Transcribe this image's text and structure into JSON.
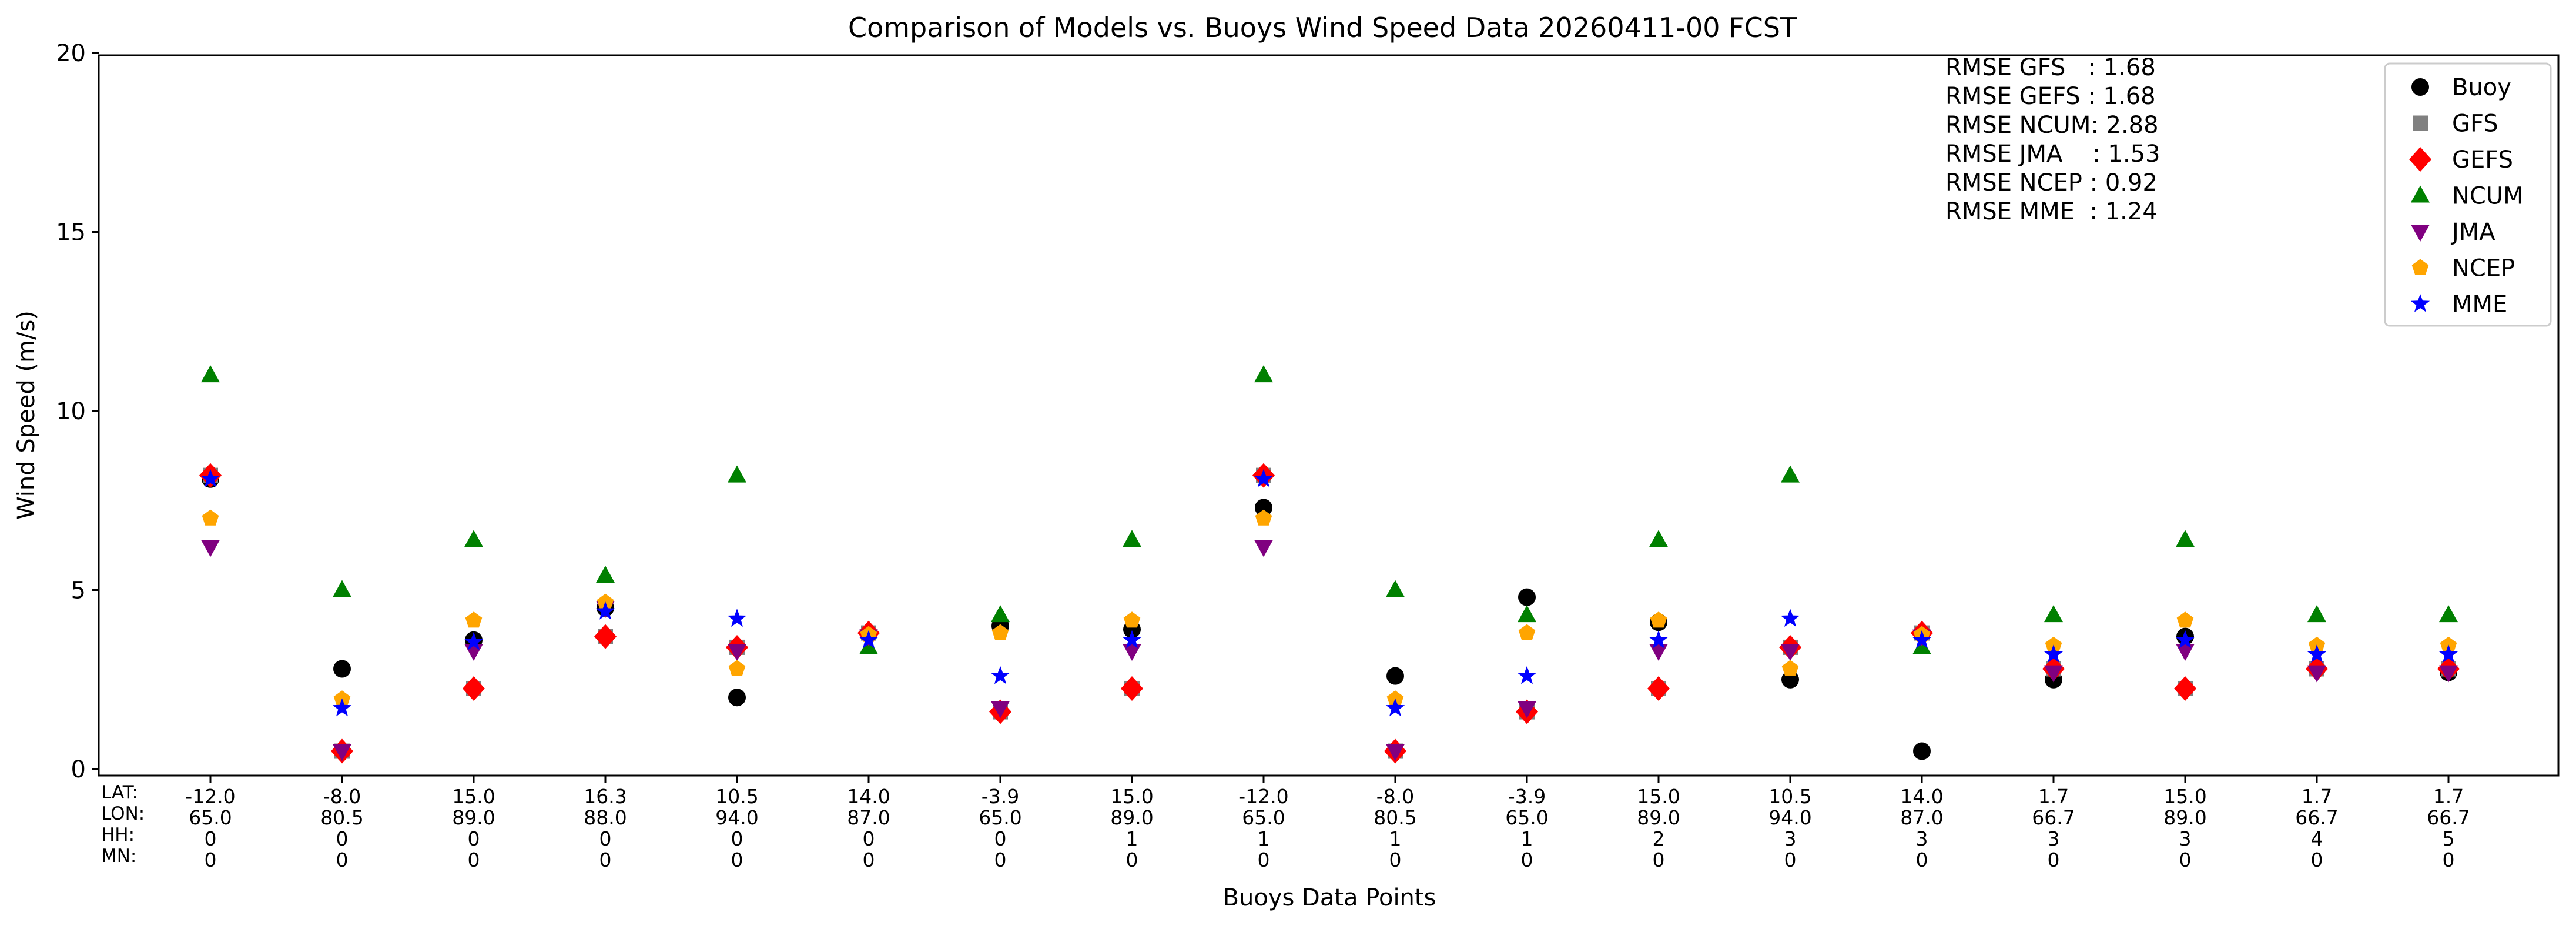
{
  "chart_data": {
    "type": "scatter",
    "title": "Comparison of Models vs. Buoys Wind Speed Data 20260411-00 FCST",
    "xlabel": "Buoys Data Points",
    "ylabel": "Wind Speed (m/s)",
    "ylim": [
      0,
      20
    ],
    "yticks": [
      0,
      5,
      10,
      15,
      20
    ],
    "grid": false,
    "legend_position": "top-right",
    "row_headers": [
      "LAT:",
      "LON:",
      "HH:",
      "MN:"
    ],
    "x_labels": [
      [
        "-12.0",
        "65.0",
        "0",
        "0"
      ],
      [
        "-8.0",
        "80.5",
        "0",
        "0"
      ],
      [
        "15.0",
        "89.0",
        "0",
        "0"
      ],
      [
        "16.3",
        "88.0",
        "0",
        "0"
      ],
      [
        "10.5",
        "94.0",
        "0",
        "0"
      ],
      [
        "14.0",
        "87.0",
        "0",
        "0"
      ],
      [
        "-3.9",
        "65.0",
        "0",
        "0"
      ],
      [
        "15.0",
        "89.0",
        "1",
        "0"
      ],
      [
        "-12.0",
        "65.0",
        "1",
        "0"
      ],
      [
        "-8.0",
        "80.5",
        "1",
        "0"
      ],
      [
        "-3.9",
        "65.0",
        "1",
        "0"
      ],
      [
        "15.0",
        "89.0",
        "2",
        "0"
      ],
      [
        "10.5",
        "94.0",
        "3",
        "0"
      ],
      [
        "14.0",
        "87.0",
        "3",
        "0"
      ],
      [
        "1.7",
        "66.7",
        "3",
        "0"
      ],
      [
        "15.0",
        "89.0",
        "3",
        "0"
      ],
      [
        "1.7",
        "66.7",
        "4",
        "0"
      ],
      [
        "1.7",
        "66.7",
        "5",
        "0"
      ]
    ],
    "rmse_lines": [
      "RMSE GFS   : 1.68",
      "RMSE GEFS : 1.68",
      "RMSE NCUM: 2.88",
      "RMSE JMA    : 1.53",
      "RMSE NCEP : 0.92",
      "RMSE MME  : 1.24"
    ],
    "series": [
      {
        "name": "Buoy",
        "marker": "circle",
        "color": "#000000",
        "values": [
          8.1,
          2.8,
          3.6,
          4.5,
          2.0,
          3.8,
          4.0,
          3.9,
          7.3,
          2.6,
          4.8,
          4.1,
          2.5,
          0.5,
          2.5,
          3.7,
          2.8,
          2.7
        ]
      },
      {
        "name": "GFS",
        "marker": "square",
        "color": "#808080",
        "values": [
          8.2,
          0.5,
          2.25,
          3.7,
          3.4,
          3.8,
          1.6,
          2.25,
          8.2,
          0.5,
          1.6,
          2.25,
          3.4,
          3.8,
          2.8,
          2.25,
          2.8,
          2.8
        ]
      },
      {
        "name": "GEFS",
        "marker": "diamond",
        "color": "#ff0000",
        "values": [
          8.2,
          0.5,
          2.25,
          3.7,
          3.4,
          3.8,
          1.6,
          2.25,
          8.2,
          0.5,
          1.6,
          2.25,
          3.4,
          3.8,
          2.8,
          2.25,
          2.8,
          2.8
        ]
      },
      {
        "name": "NCUM",
        "marker": "triangle-up",
        "color": "#008000",
        "values": [
          11.0,
          5.0,
          6.4,
          5.4,
          8.2,
          3.4,
          4.3,
          6.4,
          11.0,
          5.0,
          4.3,
          6.4,
          8.2,
          3.4,
          4.3,
          6.4,
          4.3,
          4.3
        ]
      },
      {
        "name": "JMA",
        "marker": "triangle-down",
        "color": "#800080",
        "values": [
          6.2,
          0.5,
          3.3,
          4.5,
          3.3,
          3.7,
          1.7,
          3.3,
          6.2,
          0.5,
          1.7,
          3.3,
          3.3,
          3.7,
          2.7,
          3.3,
          2.7,
          2.7
        ]
      },
      {
        "name": "NCEP",
        "marker": "pentagon",
        "color": "#ffa500",
        "values": [
          7.0,
          1.95,
          4.15,
          4.65,
          2.8,
          3.75,
          3.8,
          4.15,
          7.0,
          1.95,
          3.8,
          4.15,
          2.8,
          3.75,
          3.45,
          4.15,
          3.45,
          3.45
        ]
      },
      {
        "name": "MME",
        "marker": "star",
        "color": "#0000ff",
        "values": [
          8.1,
          1.7,
          3.55,
          4.4,
          4.2,
          3.6,
          2.6,
          3.6,
          8.1,
          1.7,
          2.6,
          3.6,
          4.2,
          3.6,
          3.2,
          3.6,
          3.2,
          3.2
        ]
      }
    ]
  }
}
